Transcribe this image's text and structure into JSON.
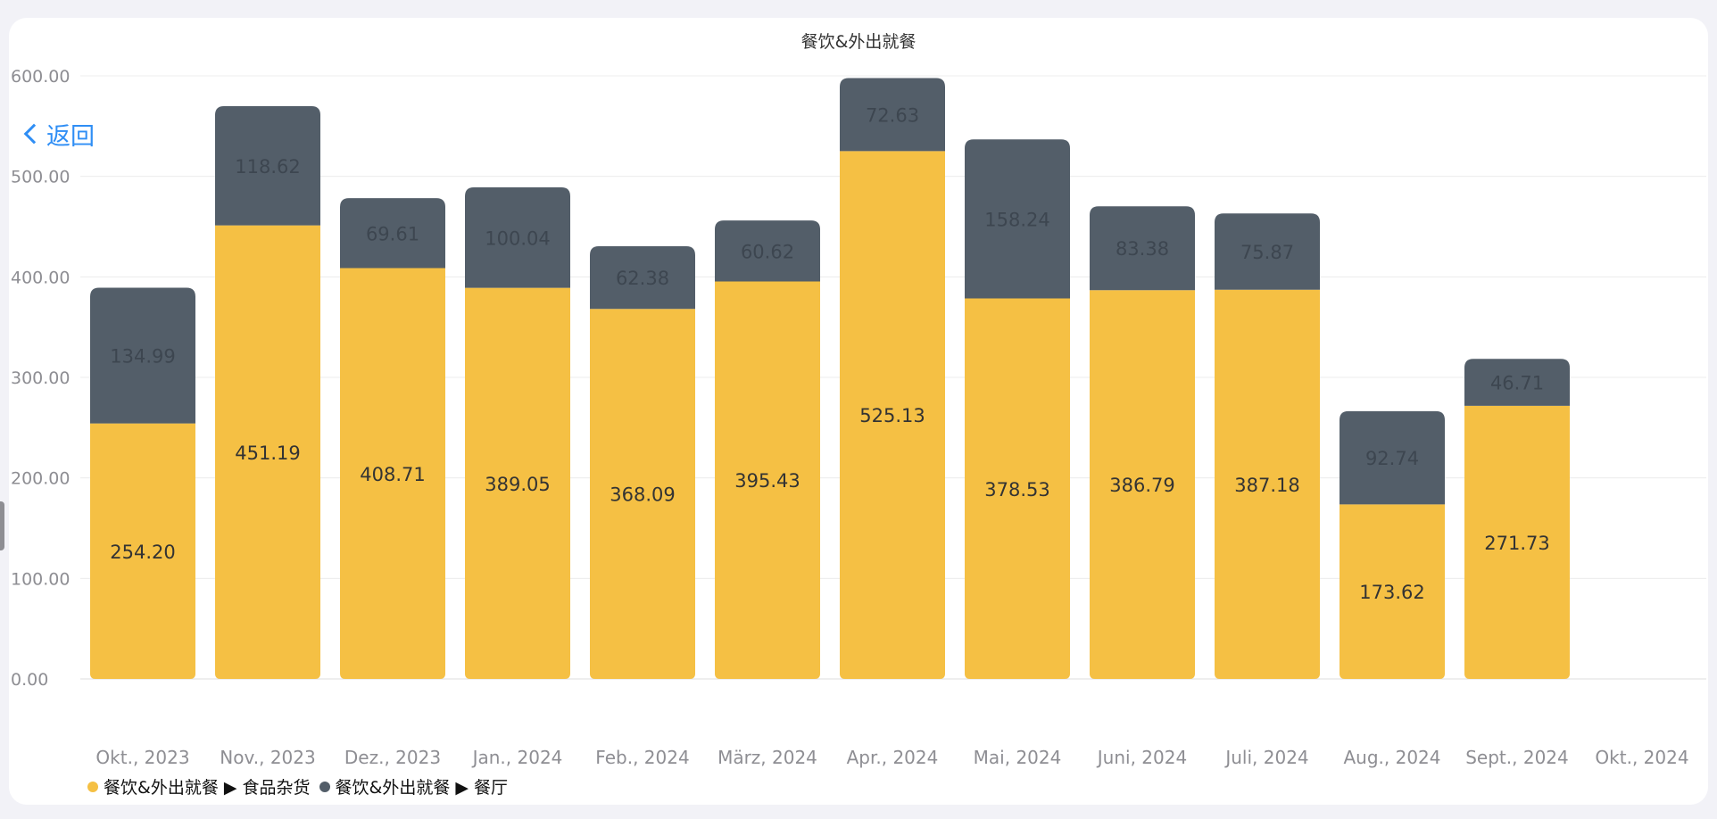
{
  "chart_data": {
    "type": "bar",
    "stacked": true,
    "title": "餐饮&外出就餐",
    "categories": [
      "Okt., 2023",
      "Nov., 2023",
      "Dez., 2023",
      "Jan., 2024",
      "Feb., 2024",
      "März, 2024",
      "Apr., 2024",
      "Mai, 2024",
      "Juni, 2024",
      "Juli, 2024",
      "Aug., 2024",
      "Sept., 2024",
      "Okt., 2024"
    ],
    "series": [
      {
        "name": "餐饮&外出就餐 ▶ 食品杂货",
        "color": "#f5c044",
        "values": [
          254.2,
          451.19,
          408.71,
          389.05,
          368.09,
          395.43,
          525.13,
          378.53,
          386.79,
          387.18,
          173.62,
          271.73,
          null
        ],
        "labels": [
          "254.20",
          "451.19",
          "408.71",
          "389.05",
          "368.09",
          "395.43",
          "525.13",
          "378.53",
          "386.79",
          "387.18",
          "173.62",
          "271.73",
          ""
        ]
      },
      {
        "name": "餐饮&外出就餐 ▶ 餐厅",
        "color": "#535e69",
        "values": [
          134.99,
          118.62,
          69.61,
          100.04,
          62.38,
          60.62,
          72.63,
          158.24,
          83.38,
          75.87,
          92.74,
          46.71,
          null
        ],
        "labels": [
          "134.99",
          "118.62",
          "69.61",
          "100.04",
          "62.38",
          "60.62",
          "72.63",
          "158.24",
          "83.38",
          "75.87",
          "92.74",
          "46.71",
          ""
        ]
      }
    ],
    "yticks": [
      "600.00",
      "500.00",
      "400.00",
      "300.00",
      "200.00",
      "100.00",
      "0.00"
    ],
    "ylim": [
      0,
      600
    ],
    "grid": true,
    "legend_position": "bottom-left"
  },
  "back_button": {
    "label": "返回"
  }
}
